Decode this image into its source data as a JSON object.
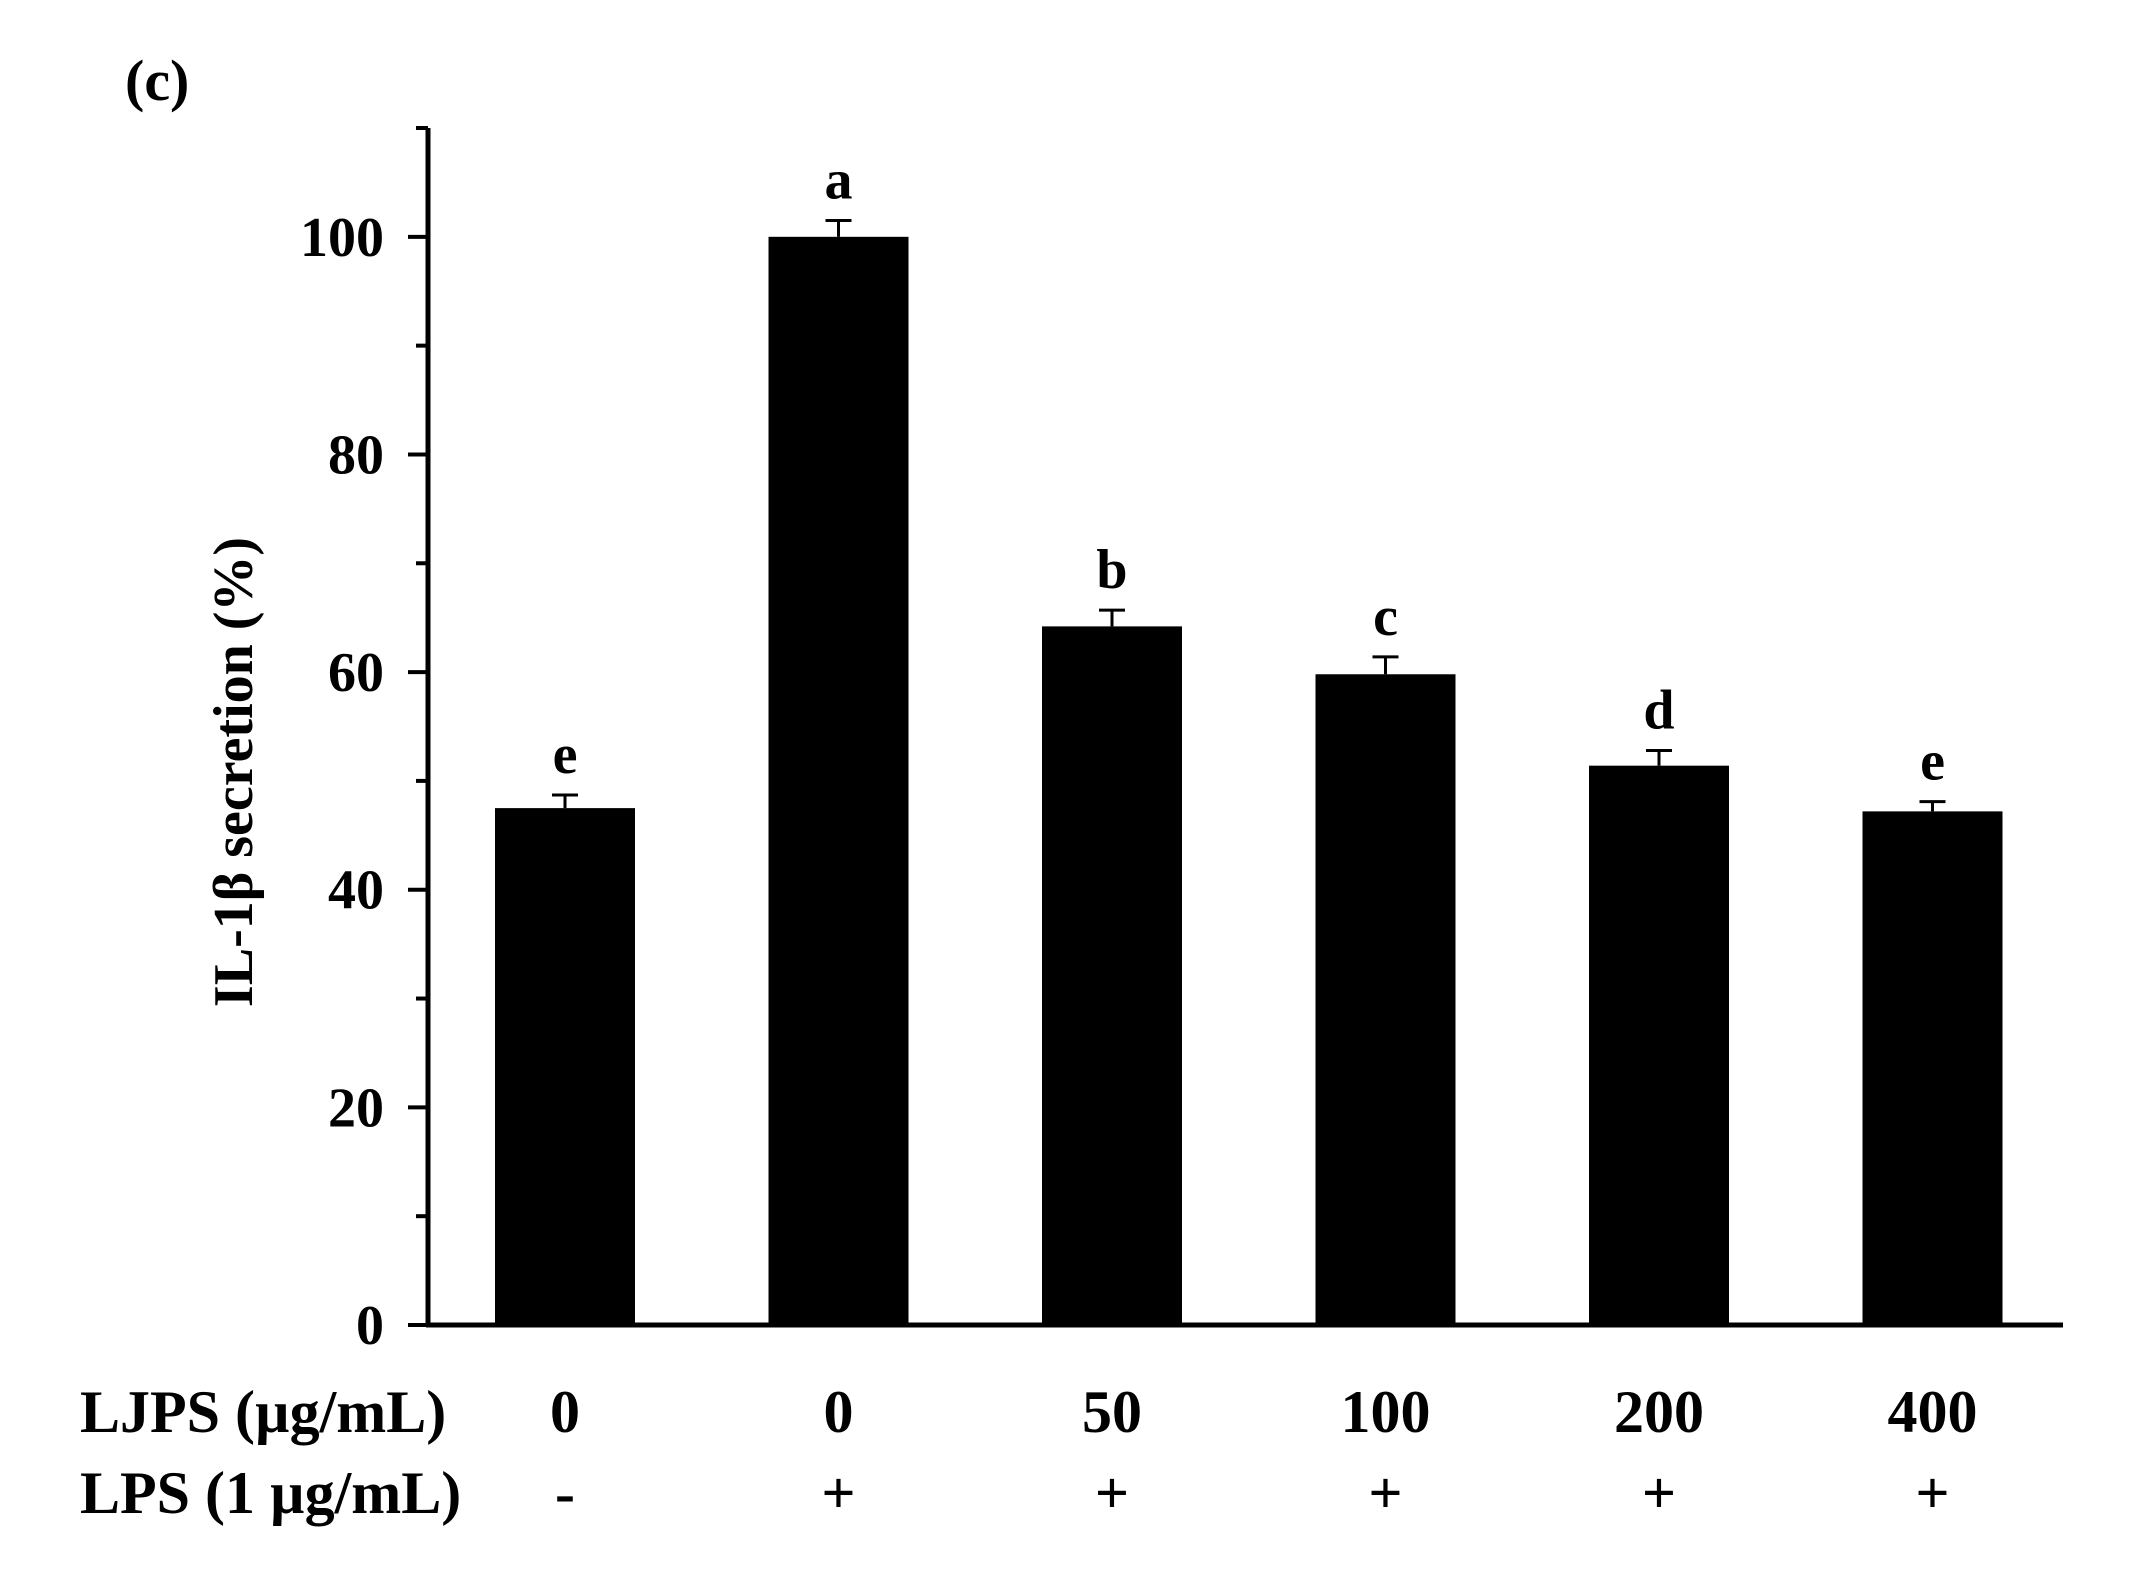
{
  "panel_label": "(c)",
  "chart_data": {
    "type": "bar",
    "ylabel": "IL-1β secretion (%)",
    "ylim": [
      0,
      110
    ],
    "yticks": [
      0,
      20,
      40,
      60,
      80,
      100
    ],
    "yminor_step": 10,
    "bar_color": "#000000",
    "values": [
      47.5,
      100,
      64.2,
      59.8,
      51.4,
      47.2
    ],
    "errors": [
      1.2,
      1.5,
      1.5,
      1.6,
      1.4,
      0.9
    ],
    "significance": [
      "e",
      "a",
      "b",
      "c",
      "d",
      "e"
    ],
    "treatment_rows": [
      {
        "label": "LJPS (µg/mL)",
        "values": [
          "0",
          "0",
          "50",
          "100",
          "200",
          "400"
        ]
      },
      {
        "label": "LPS (1 µg/mL)",
        "values": [
          "-",
          "+",
          "+",
          "+",
          "+",
          "+"
        ]
      }
    ]
  }
}
